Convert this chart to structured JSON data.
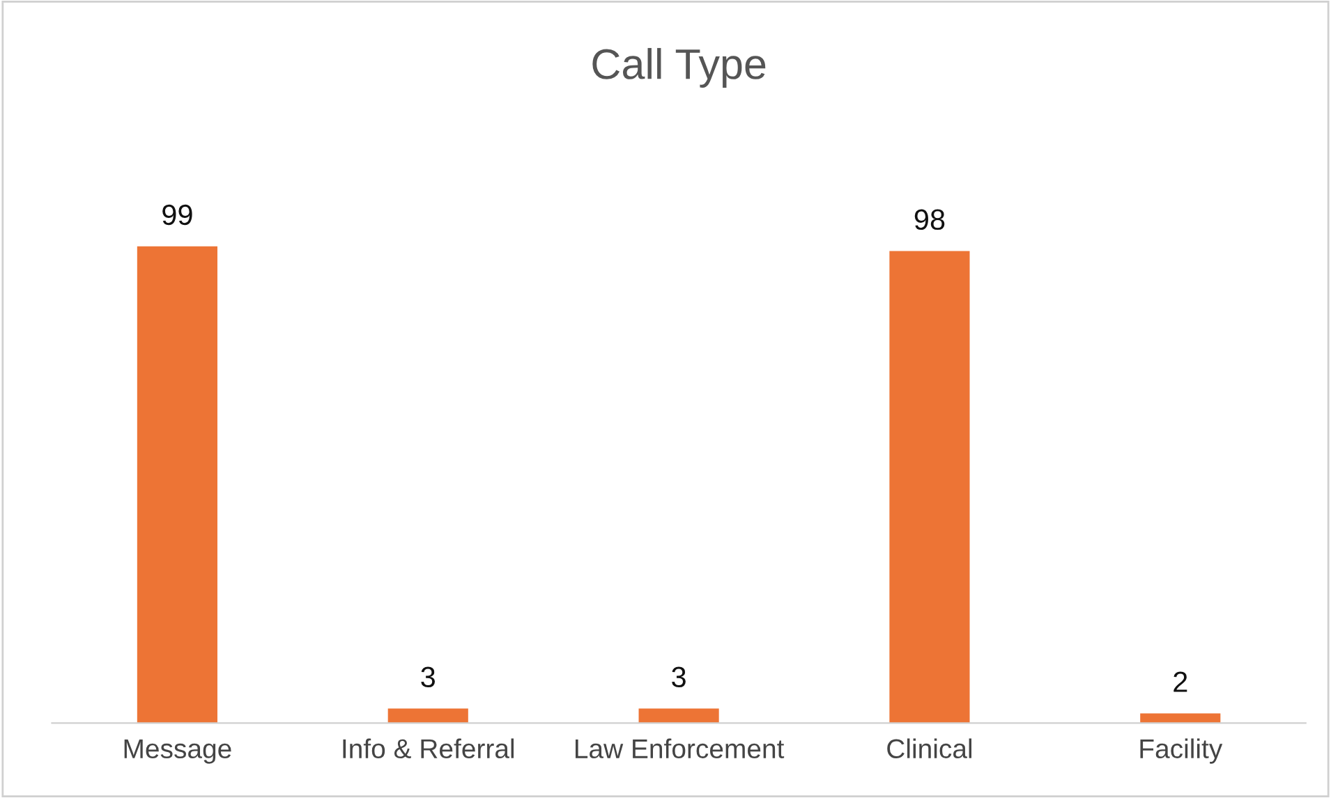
{
  "chart_data": {
    "type": "bar",
    "title": "Call Type",
    "categories": [
      "Message",
      "Info & Referral",
      "Law Enforcement",
      "Clinical",
      "Facility"
    ],
    "values": [
      99,
      3,
      3,
      98,
      2
    ],
    "color": "#ed7435",
    "tick_labels": "x",
    "data_labels": true
  }
}
